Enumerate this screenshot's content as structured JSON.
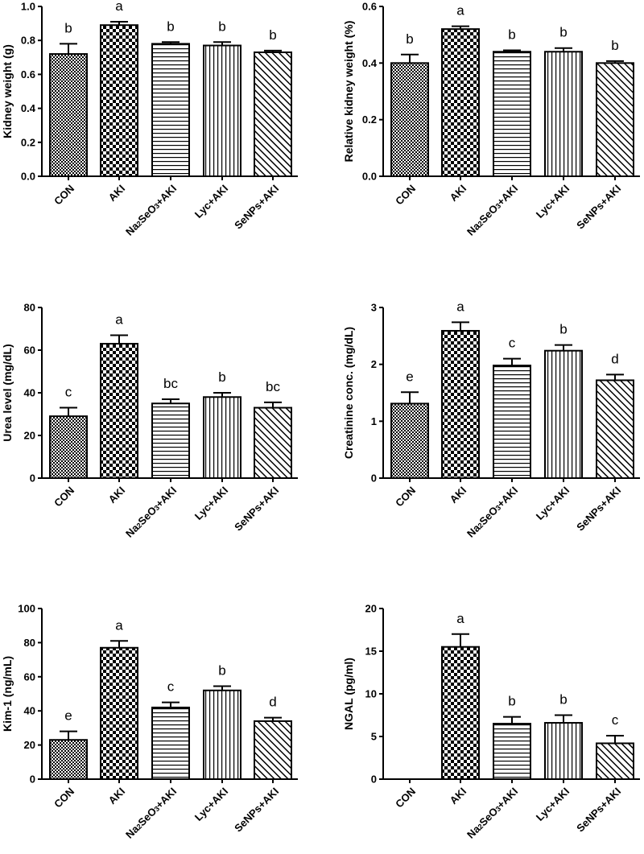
{
  "chart_data": [
    {
      "type": "bar",
      "ylabel": "Kidney weight (g)",
      "ylim": [
        0,
        1.0
      ],
      "yticks": [
        0.0,
        0.2,
        0.4,
        0.6,
        0.8,
        1.0
      ],
      "ytick_labels": [
        "0.0",
        "0.2",
        "0.4",
        "0.6",
        "0.8",
        "1.0"
      ],
      "categories": [
        "CON",
        "AKI",
        "Na2SeO3+AKI",
        "Lyc+AKI",
        "SeNPs+AKI"
      ],
      "values": [
        0.72,
        0.89,
        0.78,
        0.77,
        0.73
      ],
      "errors": [
        0.06,
        0.02,
        0.01,
        0.02,
        0.01
      ],
      "letters": [
        "b",
        "a",
        "b",
        "b",
        "b"
      ]
    },
    {
      "type": "bar",
      "ylabel": "Relative kidney weight (%)",
      "ylim": [
        0,
        0.6
      ],
      "yticks": [
        0.0,
        0.2,
        0.4,
        0.6
      ],
      "ytick_labels": [
        "0.0",
        "0.2",
        "0.4",
        "0.6"
      ],
      "categories": [
        "CON",
        "AKI",
        "Na2SeO3+AKI",
        "Lyc+AKI",
        "SeNPs+AKI"
      ],
      "values": [
        0.4,
        0.52,
        0.44,
        0.44,
        0.4
      ],
      "errors": [
        0.03,
        0.01,
        0.005,
        0.013,
        0.007
      ],
      "letters": [
        "b",
        "a",
        "b",
        "b",
        "b"
      ]
    },
    {
      "type": "bar",
      "ylabel": "Urea level (mg/dL)",
      "ylim": [
        0,
        80
      ],
      "yticks": [
        0,
        20,
        40,
        60,
        80
      ],
      "ytick_labels": [
        "0",
        "20",
        "40",
        "60",
        "80"
      ],
      "categories": [
        "CON",
        "AKI",
        "Na2SeO3+AKI",
        "Lyc+AKI",
        "SeNPs+AKI"
      ],
      "values": [
        29,
        63,
        35,
        38,
        33
      ],
      "errors": [
        4,
        4,
        2,
        2,
        2.5
      ],
      "letters": [
        "c",
        "a",
        "bc",
        "b",
        "bc"
      ]
    },
    {
      "type": "bar",
      "ylabel": "Creatinine conc. (mg/dL)",
      "ylim": [
        0,
        3
      ],
      "yticks": [
        0,
        1,
        2,
        3
      ],
      "ytick_labels": [
        "0",
        "1",
        "2",
        "3"
      ],
      "categories": [
        "CON",
        "AKI",
        "Na2SeO3+AKI",
        "Lyc+AKI",
        "SeNPs+AKI"
      ],
      "values": [
        1.31,
        2.59,
        1.98,
        2.24,
        1.72
      ],
      "errors": [
        0.2,
        0.15,
        0.12,
        0.1,
        0.1
      ],
      "letters": [
        "e",
        "a",
        "c",
        "b",
        "d"
      ]
    },
    {
      "type": "bar",
      "ylabel": "Kim-1 (ng/mL)",
      "ylim": [
        0,
        100
      ],
      "yticks": [
        0,
        20,
        40,
        60,
        80,
        100
      ],
      "ytick_labels": [
        "0",
        "20",
        "40",
        "60",
        "80",
        "100"
      ],
      "categories": [
        "CON",
        "AKI",
        "Na2SeO3+AKI",
        "Lyc+AKI",
        "SeNPs+AKI"
      ],
      "values": [
        23,
        77,
        42,
        52,
        34
      ],
      "errors": [
        5,
        4,
        3,
        2.5,
        2
      ],
      "letters": [
        "e",
        "a",
        "c",
        "b",
        "d"
      ]
    },
    {
      "type": "bar",
      "ylabel": "NGAL (pg/ml)",
      "ylim": [
        0,
        20
      ],
      "yticks": [
        0,
        5,
        10,
        15,
        20
      ],
      "ytick_labels": [
        "0",
        "5",
        "10",
        "15",
        "20"
      ],
      "categories": [
        "CON",
        "AKI",
        "Na2SeO3+AKI",
        "Lyc+AKI",
        "SeNPs+AKI"
      ],
      "values": [
        0,
        15.5,
        6.5,
        6.6,
        4.2
      ],
      "errors": [
        0,
        1.5,
        0.8,
        0.9,
        0.9
      ],
      "letters": [
        "",
        "a",
        "b",
        "b",
        "c"
      ]
    }
  ],
  "colors": {
    "ink": "#000000",
    "background": "#ffffff"
  }
}
